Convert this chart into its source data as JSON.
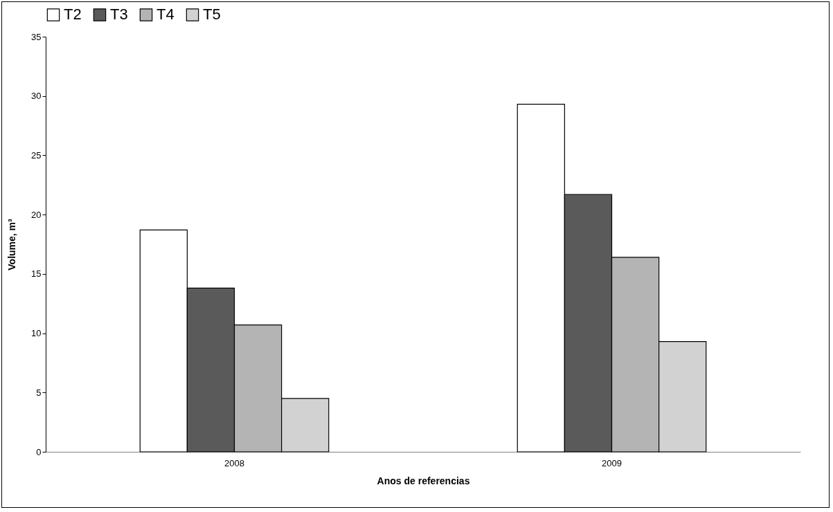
{
  "chart_data": {
    "type": "bar",
    "xlabel": "Anos de referencias",
    "ylabel": "Volume, m³",
    "categories": [
      "2008",
      "2009"
    ],
    "series": [
      {
        "name": "T2",
        "color": "#ffffff",
        "values": [
          18.7,
          29.3
        ]
      },
      {
        "name": "T3",
        "color": "#5a5a5a",
        "values": [
          13.8,
          21.7
        ]
      },
      {
        "name": "T4",
        "color": "#b4b4b4",
        "values": [
          10.7,
          16.4
        ]
      },
      {
        "name": "T5",
        "color": "#d2d2d2",
        "values": [
          4.5,
          9.3
        ]
      }
    ],
    "ylim": [
      0,
      35
    ],
    "yticks": [
      0,
      5,
      10,
      15,
      20,
      25,
      30,
      35
    ],
    "grid": false,
    "legend": "top"
  }
}
